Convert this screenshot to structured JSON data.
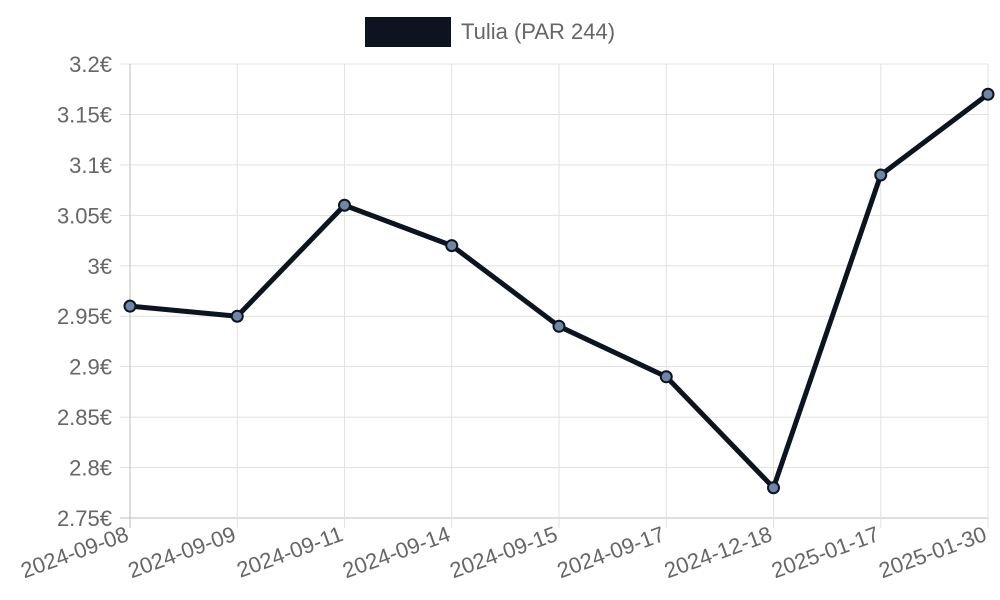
{
  "legend": {
    "label": "Tulia (PAR 244)",
    "swatch_color": "#0c1420"
  },
  "colors": {
    "line": "#0c1420",
    "point_fill": "#6f87a6",
    "grid": "#e1e1e1",
    "text": "#666666"
  },
  "chart_data": {
    "type": "line",
    "categories": [
      "2024-09-08",
      "2024-09-09",
      "2024-09-11",
      "2024-09-14",
      "2024-09-15",
      "2024-09-17",
      "2024-12-18",
      "2025-01-17",
      "2025-01-30"
    ],
    "series": [
      {
        "name": "Tulia (PAR 244)",
        "values": [
          2.96,
          2.95,
          3.06,
          3.02,
          2.94,
          2.89,
          2.78,
          3.09,
          3.17
        ]
      }
    ],
    "y_ticks": [
      "3.2€",
      "3.15€",
      "3.1€",
      "3.05€",
      "3€",
      "2.95€",
      "2.9€",
      "2.85€",
      "2.8€",
      "2.75€"
    ],
    "ylim": [
      2.75,
      3.2
    ],
    "grid": true,
    "legend_position": "top"
  }
}
